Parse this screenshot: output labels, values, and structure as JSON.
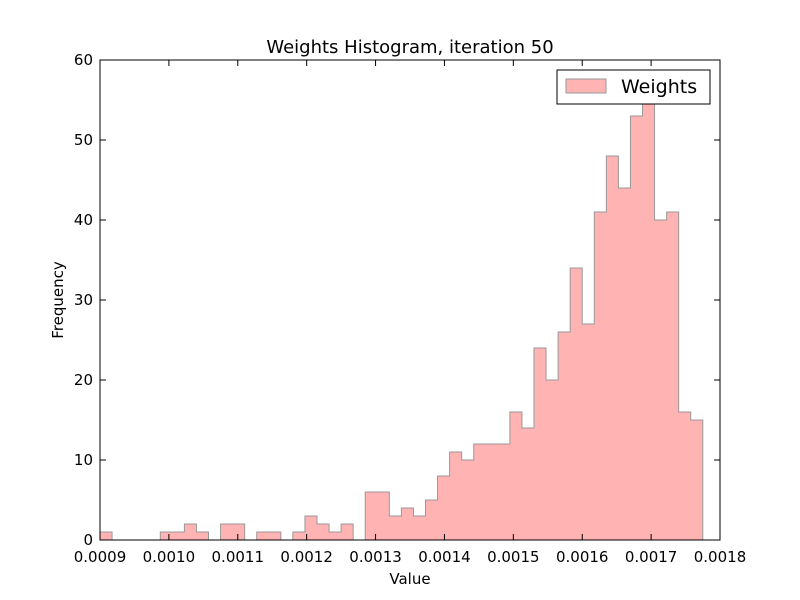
{
  "chart_data": {
    "type": "bar",
    "title": "Weights Histogram, iteration 50",
    "xlabel": "Value",
    "ylabel": "Frequency",
    "xlim": [
      0.0009,
      0.0018
    ],
    "ylim": [
      0,
      60
    ],
    "xticks": [
      "0.0009",
      "0.0010",
      "0.0011",
      "0.0012",
      "0.0013",
      "0.0014",
      "0.0015",
      "0.0016",
      "0.0017",
      "0.0018"
    ],
    "yticks": [
      "0",
      "10",
      "20",
      "30",
      "40",
      "50",
      "60"
    ],
    "bin_start": 0.0009,
    "bin_width": 1.75e-05,
    "series": [
      {
        "name": "Weights",
        "color": "#ffb3b3",
        "edge_color": "#999999",
        "values": [
          1,
          0,
          0,
          0,
          0,
          1,
          1,
          2,
          1,
          0,
          2,
          2,
          0,
          1,
          1,
          0,
          1,
          3,
          2,
          1,
          2,
          0,
          6,
          6,
          3,
          4,
          3,
          5,
          8,
          11,
          10,
          12,
          12,
          12,
          16,
          14,
          24,
          20,
          26,
          34,
          27,
          41,
          48,
          44,
          53,
          55,
          40,
          41,
          16,
          15
        ]
      }
    ],
    "legend": {
      "entries": [
        "Weights"
      ],
      "placement": "top-right"
    },
    "grid": false
  }
}
